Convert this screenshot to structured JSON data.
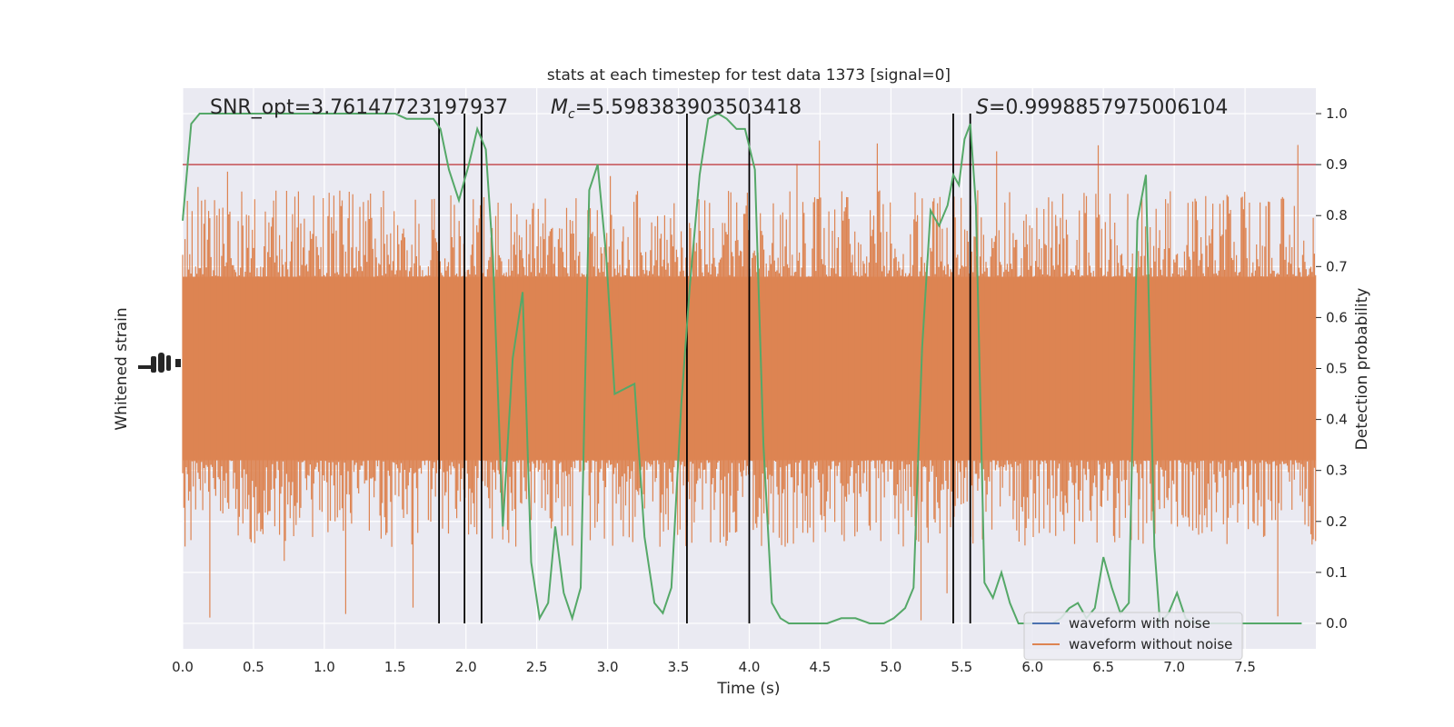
{
  "chart_data": {
    "type": "line",
    "title": "stats at each timestep for test data 1373 [signal=0]",
    "xlabel": "Time (s)",
    "ylabel_left": "Whitened strain",
    "ylabel_right": "Detection probability",
    "xlim": [
      0,
      8
    ],
    "ylim_right": [
      -0.05,
      1.05
    ],
    "grid": true,
    "x_ticks": [
      0.0,
      0.5,
      1.0,
      1.5,
      2.0,
      2.5,
      3.0,
      3.5,
      4.0,
      4.5,
      5.0,
      5.5,
      6.0,
      6.5,
      7.0,
      7.5
    ],
    "x_tick_labels": [
      "0.0",
      "0.5",
      "1.0",
      "1.5",
      "2.0",
      "2.5",
      "3.0",
      "3.5",
      "4.0",
      "4.5",
      "5.0",
      "5.5",
      "6.0",
      "6.5",
      "7.0",
      "7.5"
    ],
    "y_right_ticks": [
      0.0,
      0.1,
      0.2,
      0.3,
      0.4,
      0.5,
      0.6,
      0.7,
      0.8,
      0.9,
      1.0
    ],
    "y_right_tick_labels": [
      "0.0",
      "0.1",
      "0.2",
      "0.3",
      "0.4",
      "0.5",
      "0.6",
      "0.7",
      "0.8",
      "0.9",
      "1.0"
    ],
    "annotations": {
      "snr": "SNR_opt=3.76147723197937",
      "mc_symbol": "M",
      "mc_sub": "c",
      "mc_value": "=5.598383903503418",
      "s_symbol": "S",
      "s_value": "=0.9998857975006104"
    },
    "legend": {
      "placement": "lower-right",
      "entries": [
        {
          "label": "waveform with noise",
          "color": "#4c72b0"
        },
        {
          "label": "waveform without noise",
          "color": "#dd8452"
        }
      ]
    },
    "threshold": {
      "value": 0.9,
      "color": "#c44e52"
    },
    "vertical_lines": [
      1.81,
      1.99,
      2.11,
      3.56,
      4.0,
      5.44,
      5.56
    ],
    "noise_band": {
      "color": "#dd8452",
      "core_low": 0.32,
      "core_high": 0.68,
      "spike_low": 0.0,
      "spike_high": 0.95
    },
    "series": [
      {
        "name": "Detection probability",
        "color": "#55a868",
        "x": [
          0.0,
          0.06,
          0.12,
          0.2,
          0.3,
          0.4,
          0.5,
          0.6,
          0.7,
          0.8,
          0.9,
          1.0,
          1.1,
          1.2,
          1.3,
          1.4,
          1.5,
          1.58,
          1.66,
          1.72,
          1.77,
          1.82,
          1.88,
          1.95,
          2.02,
          2.08,
          2.14,
          2.19,
          2.26,
          2.33,
          2.4,
          2.46,
          2.52,
          2.58,
          2.63,
          2.69,
          2.75,
          2.81,
          2.87,
          2.93,
          2.99,
          3.05,
          3.12,
          3.19,
          3.26,
          3.33,
          3.39,
          3.45,
          3.52,
          3.58,
          3.65,
          3.71,
          3.78,
          3.84,
          3.91,
          3.97,
          4.04,
          4.1,
          4.16,
          4.22,
          4.28,
          4.35,
          4.45,
          4.55,
          4.65,
          4.75,
          4.85,
          4.95,
          5.02,
          5.1,
          5.16,
          5.22,
          5.28,
          5.34,
          5.4,
          5.44,
          5.48,
          5.52,
          5.56,
          5.6,
          5.66,
          5.72,
          5.78,
          5.84,
          5.9,
          5.96,
          6.02,
          6.08,
          6.14,
          6.2,
          6.26,
          6.32,
          6.38,
          6.44,
          6.5,
          6.56,
          6.62,
          6.68,
          6.74,
          6.8,
          6.86,
          6.9,
          6.96,
          7.02,
          7.08,
          7.14,
          7.2,
          7.26,
          7.32,
          7.4,
          7.5,
          7.6,
          7.7,
          7.8,
          7.9
        ],
        "y": [
          0.79,
          0.98,
          1.0,
          1.0,
          1.0,
          1.0,
          1.0,
          1.0,
          1.0,
          1.0,
          1.0,
          1.0,
          1.0,
          1.0,
          1.0,
          1.0,
          1.0,
          0.99,
          0.99,
          0.99,
          0.99,
          0.97,
          0.89,
          0.83,
          0.9,
          0.97,
          0.93,
          0.72,
          0.19,
          0.52,
          0.65,
          0.12,
          0.01,
          0.04,
          0.19,
          0.06,
          0.01,
          0.07,
          0.85,
          0.9,
          0.72,
          0.45,
          0.46,
          0.47,
          0.17,
          0.04,
          0.02,
          0.07,
          0.43,
          0.66,
          0.88,
          0.99,
          1.0,
          0.99,
          0.97,
          0.97,
          0.89,
          0.35,
          0.04,
          0.01,
          0.0,
          0.0,
          0.0,
          0.0,
          0.01,
          0.01,
          0.0,
          0.0,
          0.01,
          0.03,
          0.07,
          0.54,
          0.81,
          0.78,
          0.82,
          0.88,
          0.86,
          0.95,
          0.98,
          0.82,
          0.08,
          0.05,
          0.1,
          0.04,
          0.0,
          0.0,
          0.0,
          0.0,
          0.0,
          0.01,
          0.03,
          0.04,
          0.01,
          0.03,
          0.13,
          0.07,
          0.02,
          0.04,
          0.79,
          0.88,
          0.15,
          0.0,
          0.02,
          0.06,
          0.01,
          0.0,
          0.0,
          0.0,
          0.0,
          0.0,
          0.0,
          0.0,
          0.0,
          0.0,
          0.0
        ]
      }
    ]
  }
}
